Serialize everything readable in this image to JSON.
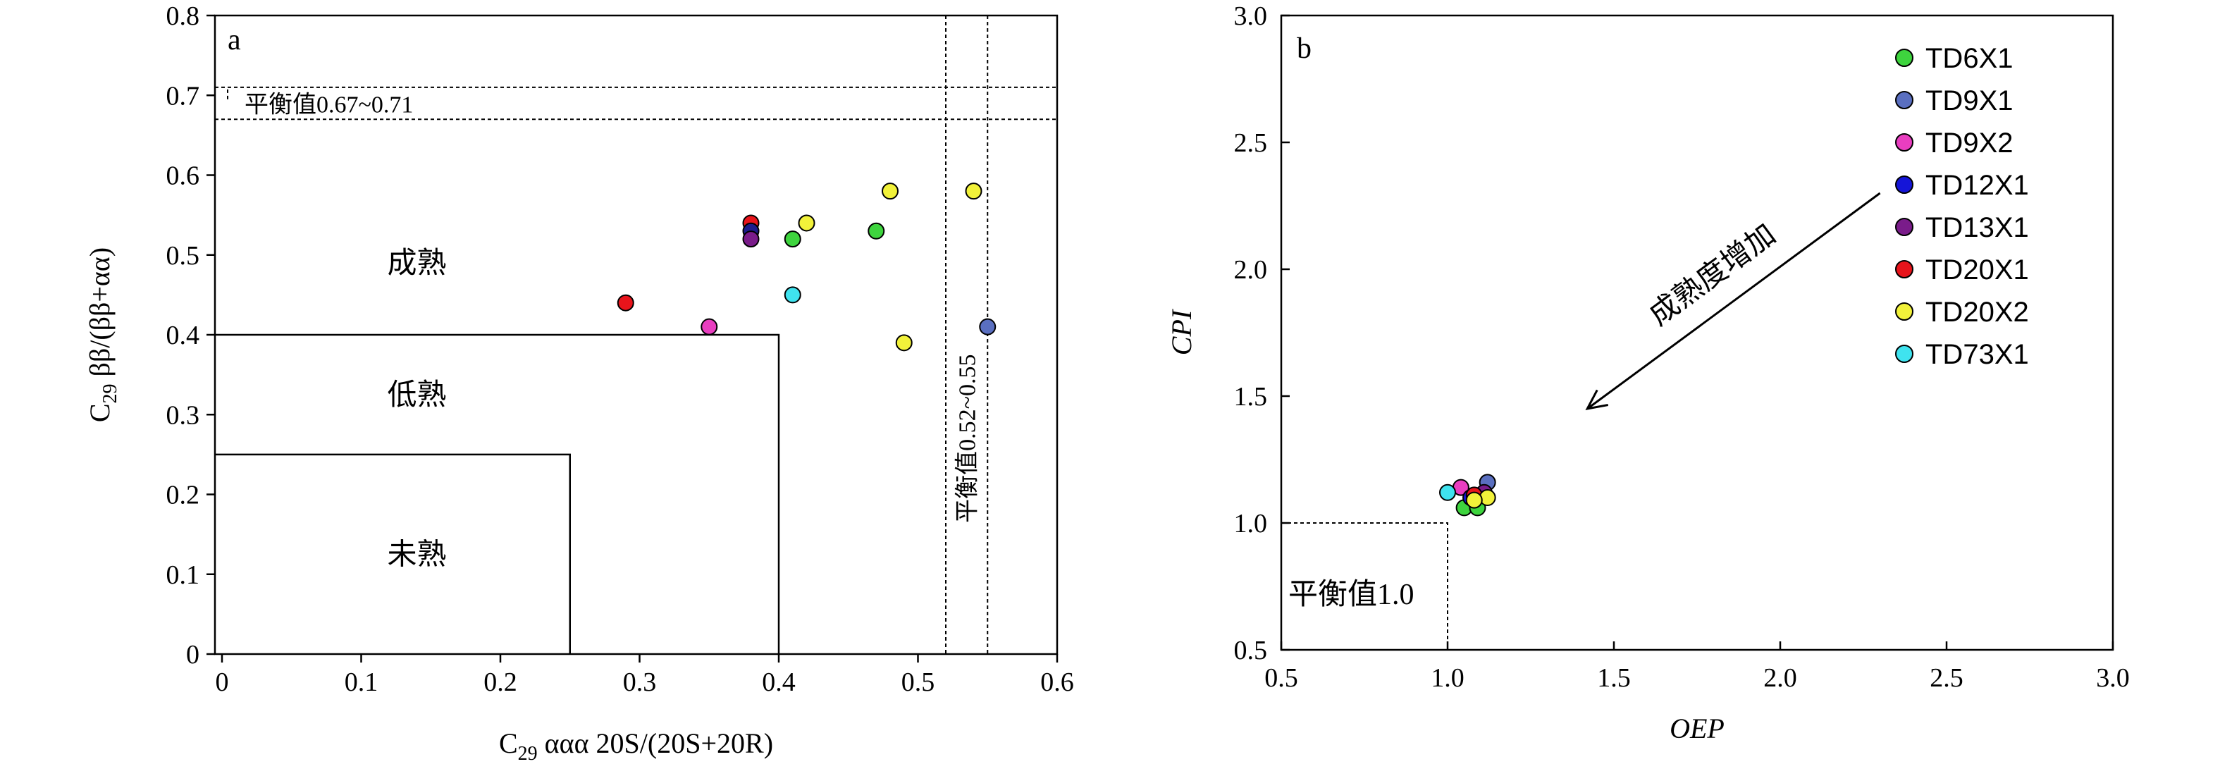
{
  "chart_data": [
    {
      "type": "scatter",
      "panel": "a",
      "xlabel_prefix": "C",
      "xlabel_sub": "29",
      "xlabel_rest": " ααα 20S/(20S+20R)",
      "ylabel_prefix": "C",
      "ylabel_sub": "29",
      "ylabel_rest": " ββ/(ββ+αα)",
      "xlim": [
        0,
        0.6
      ],
      "ylim": [
        0,
        0.8
      ],
      "xticks": [
        "0",
        "0.1",
        "0.2",
        "0.3",
        "0.4",
        "0.5",
        "0.6"
      ],
      "yticks": [
        "0",
        "0.1",
        "0.2",
        "0.3",
        "0.4",
        "0.5",
        "0.6",
        "0.7",
        "0.8"
      ],
      "regions": [
        {
          "label": "未熟",
          "xmax": 0.25,
          "ymax": 0.25
        },
        {
          "label": "低熟",
          "xmax": 0.4,
          "ymax": 0.4
        },
        {
          "label": "成熟"
        }
      ],
      "balance_y": {
        "label": "平衡值0.67~0.71",
        "range": [
          0.67,
          0.71
        ]
      },
      "balance_x": {
        "label": "平衡值0.52~0.55",
        "range": [
          0.52,
          0.55
        ]
      },
      "points": [
        {
          "x": 0.29,
          "y": 0.44,
          "color": "#e8141b"
        },
        {
          "x": 0.35,
          "y": 0.41,
          "color": "#e93ec0"
        },
        {
          "x": 0.38,
          "y": 0.54,
          "color": "#e8141b"
        },
        {
          "x": 0.38,
          "y": 0.53,
          "color": "#1c1c8c"
        },
        {
          "x": 0.38,
          "y": 0.52,
          "color": "#7a1c8a"
        },
        {
          "x": 0.41,
          "y": 0.52,
          "color": "#3ed43e"
        },
        {
          "x": 0.42,
          "y": 0.54,
          "color": "#f2f23a"
        },
        {
          "x": 0.41,
          "y": 0.45,
          "color": "#3fe3ef"
        },
        {
          "x": 0.47,
          "y": 0.53,
          "color": "#3ed43e"
        },
        {
          "x": 0.48,
          "y": 0.58,
          "color": "#f2f23a"
        },
        {
          "x": 0.49,
          "y": 0.39,
          "color": "#f2f23a"
        },
        {
          "x": 0.54,
          "y": 0.58,
          "color": "#f2f23a"
        },
        {
          "x": 0.55,
          "y": 0.41,
          "color": "#5a6fc0"
        }
      ]
    },
    {
      "type": "scatter",
      "panel": "b",
      "xlabel": "OEP",
      "ylabel": "CPI",
      "xlim": [
        0.5,
        3.0
      ],
      "ylim": [
        0.5,
        3.0
      ],
      "xticks": [
        "0.5",
        "1.0",
        "1.5",
        "2.0",
        "2.5",
        "3.0"
      ],
      "yticks": [
        "0.5",
        "1.0",
        "1.5",
        "2.0",
        "2.5",
        "3.0"
      ],
      "balance": {
        "label": "平衡值1.0",
        "x": 1.0,
        "y": 1.0
      },
      "arrow_label": "成熟度增加",
      "series": [
        {
          "name": "TD6X1",
          "color": "#3ed43e",
          "points": [
            [
              1.05,
              1.06
            ],
            [
              1.09,
              1.06
            ]
          ]
        },
        {
          "name": "TD9X1",
          "color": "#5a6fc0",
          "points": [
            [
              1.12,
              1.16
            ]
          ]
        },
        {
          "name": "TD9X2",
          "color": "#e93ec0",
          "points": [
            [
              1.04,
              1.14
            ]
          ]
        },
        {
          "name": "TD12X1",
          "color": "#1515d8",
          "points": [
            [
              1.07,
              1.1
            ]
          ]
        },
        {
          "name": "TD13X1",
          "color": "#7a1c8a",
          "points": [
            [
              1.11,
              1.12
            ]
          ]
        },
        {
          "name": "TD20X1",
          "color": "#e8141b",
          "points": [
            [
              1.08,
              1.11
            ]
          ]
        },
        {
          "name": "TD20X2",
          "color": "#f2f23a",
          "points": [
            [
              1.12,
              1.1
            ],
            [
              1.08,
              1.09
            ]
          ]
        },
        {
          "name": "TD73X1",
          "color": "#3fe3ef",
          "points": [
            [
              1.0,
              1.12
            ]
          ]
        }
      ]
    }
  ]
}
